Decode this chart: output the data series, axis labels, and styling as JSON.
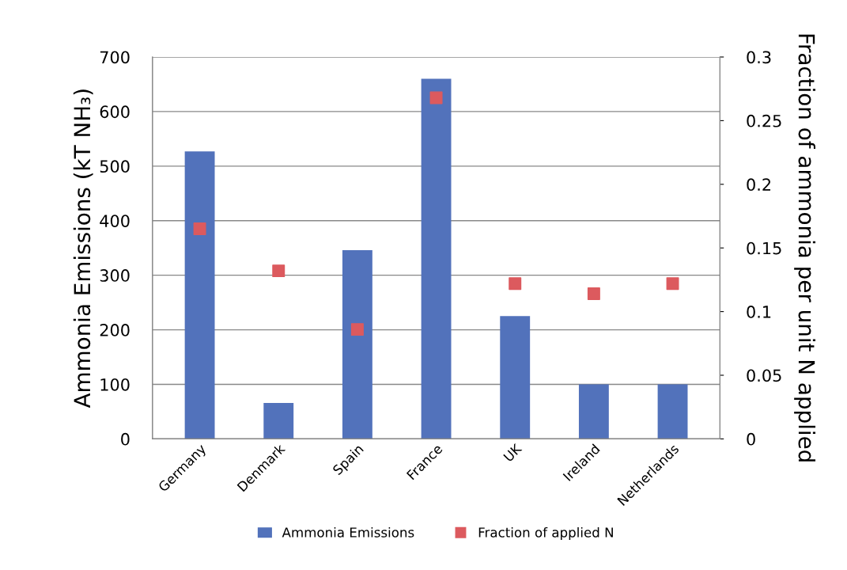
{
  "chart_data": {
    "type": "bar",
    "categories": [
      "Germany",
      "Denmark",
      "Spain",
      "France",
      "UK",
      "Ireland",
      "Netherlands"
    ],
    "series": [
      {
        "name": "Ammonia Emissions",
        "color": "#5272bb",
        "values": [
          527,
          66,
          346,
          660,
          225,
          100,
          100
        ]
      },
      {
        "name": "Fraction of applied N",
        "type": "scatter",
        "axis": "y2",
        "color": "#dc5a5e",
        "values": [
          0.165,
          0.132,
          0.086,
          0.268,
          0.122,
          0.114,
          0.122
        ]
      }
    ],
    "ylabel": "Ammonia Emissions (kT NH₃)",
    "y2label": "Fraction of ammonia per unit N applied",
    "ylim": [
      0,
      700
    ],
    "yticks": [
      0,
      100,
      200,
      300,
      400,
      500,
      600,
      700
    ],
    "y2lim": [
      0,
      0.3
    ],
    "y2ticks": [
      0,
      0.05,
      0.1,
      0.15,
      0.2,
      0.25,
      0.3
    ],
    "grid": "y",
    "legend": "bottom",
    "marker": "square"
  }
}
